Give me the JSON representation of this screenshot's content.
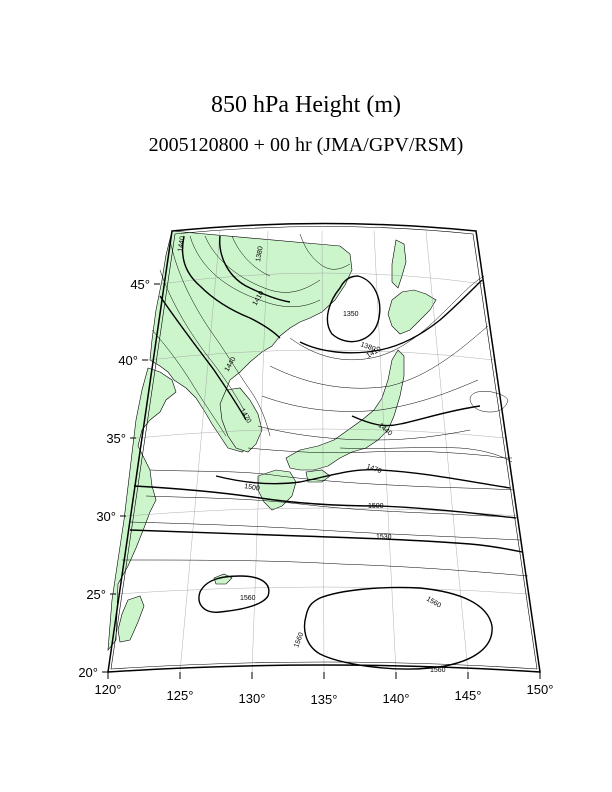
{
  "title": "850 hPa Height (m)",
  "subtitle": "2005120800 + 00 hr (JMA/GPV/RSM)",
  "axes": {
    "lon_labels": [
      "120°",
      "125°",
      "130°",
      "135°",
      "140°",
      "145°",
      "150°"
    ],
    "lat_labels": [
      "20°",
      "25°",
      "30°",
      "35°",
      "40°",
      "45°"
    ]
  },
  "contour_labels": {
    "c1440a": "1440",
    "c1380a": "1380",
    "c1410a": "1410",
    "c1350": "1350",
    "c1380b": "1380",
    "c1410b": "1410",
    "c1440b": "1440",
    "c1470a": "1470",
    "c1440c": "1440",
    "c1470b": "1470",
    "c1500a": "1500",
    "c1500b": "1500",
    "c1530": "1530",
    "c1560a": "1560",
    "c1560b": "1560",
    "c1560c": "1560",
    "c1560d": "1560"
  },
  "colors": {
    "land": "#ccf5cc",
    "grid": "#9a9a9a",
    "contour": "#000000"
  }
}
